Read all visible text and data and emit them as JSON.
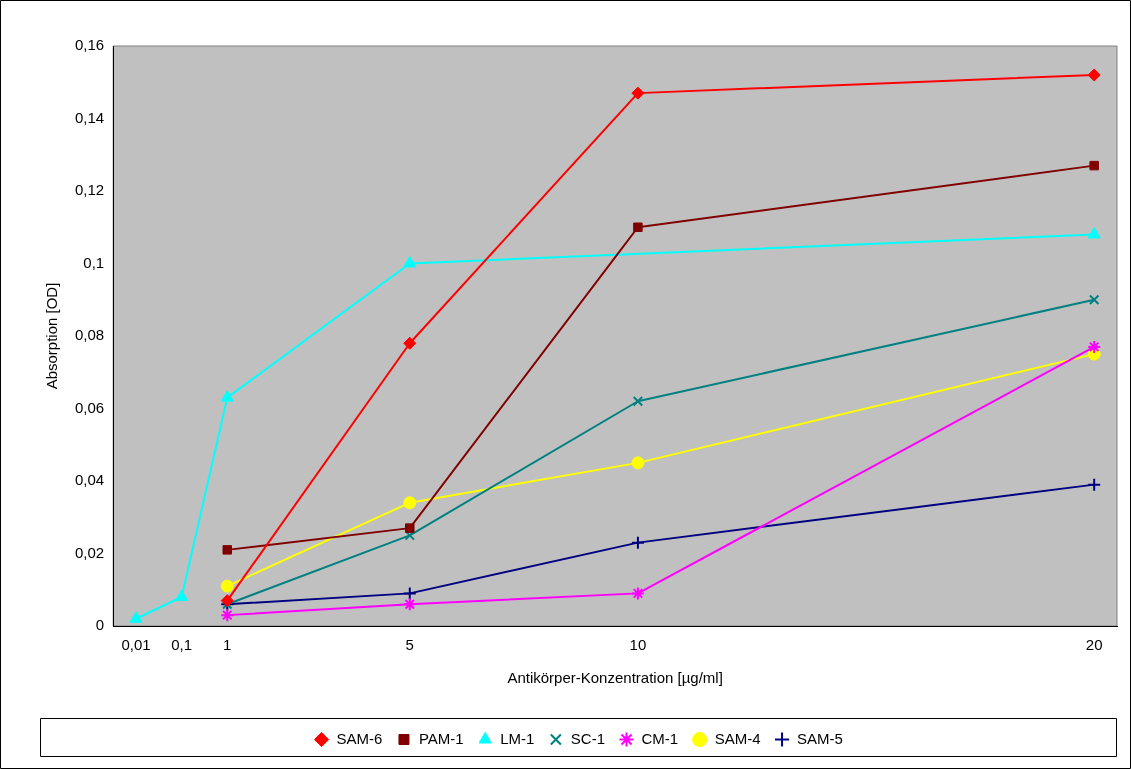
{
  "chart_data": {
    "type": "line",
    "xlabel": "Antikörper-Konzentration [µg/ml]",
    "ylabel": "Absorption [OD]",
    "categories": [
      "0,01",
      "0,1",
      "1",
      null,
      null,
      null,
      "5",
      null,
      null,
      null,
      null,
      "10",
      null,
      null,
      null,
      null,
      null,
      null,
      null,
      null,
      null,
      "20"
    ],
    "ylim": [
      0,
      0.16
    ],
    "yticks": [
      0,
      {
        "value": 0.02,
        "label": "0,02"
      },
      {
        "value": 0.04,
        "label": "0,04"
      },
      {
        "value": 0.06,
        "label": "0,06"
      },
      {
        "value": 0.08,
        "label": "0,08"
      },
      {
        "value": 0.1,
        "label": "0,1"
      },
      {
        "value": 0.12,
        "label": "0,12"
      },
      {
        "value": 0.14,
        "label": "0,14"
      },
      {
        "value": 0.16,
        "label": "0,16"
      }
    ],
    "grid": false,
    "legend": "bottom",
    "series": [
      {
        "name": "SAM-6",
        "color": "#ff0000",
        "marker": "diamond",
        "values": [
          null,
          null,
          0.007,
          null,
          null,
          null,
          0.078,
          null,
          null,
          null,
          null,
          0.147,
          null,
          null,
          null,
          null,
          null,
          null,
          null,
          null,
          null,
          0.152
        ]
      },
      {
        "name": "PAM-1",
        "color": "#800000",
        "marker": "square",
        "values": [
          null,
          null,
          0.021,
          null,
          null,
          null,
          0.027,
          null,
          null,
          null,
          null,
          0.11,
          null,
          null,
          null,
          null,
          null,
          null,
          null,
          null,
          null,
          0.127
        ]
      },
      {
        "name": "LM-1",
        "color": "#00ffff",
        "marker": "triangle",
        "values": [
          0.002,
          0.008,
          0.063,
          null,
          null,
          null,
          0.1,
          null,
          null,
          null,
          null,
          null,
          null,
          null,
          null,
          null,
          null,
          null,
          null,
          null,
          null,
          0.108
        ]
      },
      {
        "name": "SC-1",
        "color": "#008080",
        "marker": "x",
        "values": [
          null,
          null,
          0.006,
          null,
          null,
          null,
          0.025,
          null,
          null,
          null,
          null,
          0.062,
          null,
          null,
          null,
          null,
          null,
          null,
          null,
          null,
          null,
          0.09
        ]
      },
      {
        "name": "CM-1",
        "color": "#ff00ff",
        "marker": "cross",
        "values": [
          null,
          null,
          0.003,
          null,
          null,
          null,
          0.006,
          null,
          null,
          null,
          null,
          0.009,
          null,
          null,
          null,
          null,
          null,
          null,
          null,
          null,
          null,
          0.077
        ]
      },
      {
        "name": "SAM-4",
        "color": "#ffff00",
        "marker": "circle",
        "values": [
          null,
          null,
          0.011,
          null,
          null,
          null,
          0.034,
          null,
          null,
          null,
          null,
          0.045,
          null,
          null,
          null,
          null,
          null,
          null,
          null,
          null,
          null,
          0.075
        ]
      },
      {
        "name": "SAM-5",
        "color": "#000080",
        "marker": "plus",
        "values": [
          null,
          null,
          0.006,
          null,
          null,
          null,
          0.009,
          null,
          null,
          null,
          null,
          0.023,
          null,
          null,
          null,
          null,
          null,
          null,
          null,
          null,
          null,
          0.039
        ]
      }
    ]
  }
}
